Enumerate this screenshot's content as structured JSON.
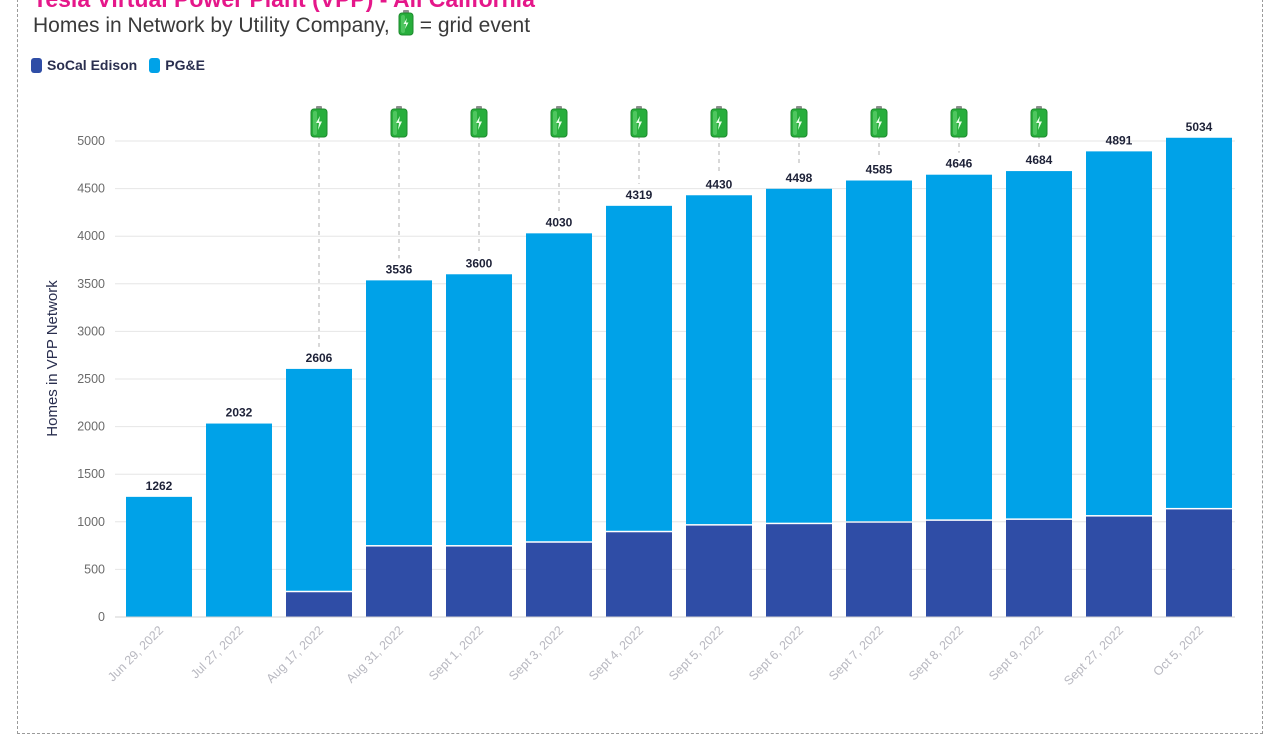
{
  "header": {
    "title": "Tesla Virtual Power Plant (VPP) - All California",
    "subtitle_before": "Homes in Network by Utility Company,",
    "subtitle_after": "= grid event",
    "battery_icon": "battery-grid-event-icon"
  },
  "colors": {
    "socal": "#2f4da6",
    "pge": "#00a2e8",
    "title": "#e5178a",
    "battery": "#27ae3c"
  },
  "chart_data": {
    "type": "bar",
    "stacked": true,
    "title": "Tesla Virtual Power Plant (VPP) - All California",
    "subtitle": "Homes in Network by Utility Company, = grid event",
    "xlabel": "",
    "ylabel": "Homes in VPP Network",
    "ylim": [
      0,
      5200
    ],
    "yticks": [
      0,
      500,
      1000,
      1500,
      2000,
      2500,
      3000,
      3500,
      4000,
      4500,
      5000
    ],
    "grid": true,
    "legend_position": "top-left",
    "categories": [
      "Jun 29, 2022",
      "Jul 27, 2022",
      "Aug 17, 2022",
      "Aug 31, 2022",
      "Sept 1, 2022",
      "Sept 3, 2022",
      "Sept 4, 2022",
      "Sept 5, 2022",
      "Sept 6, 2022",
      "Sept 7, 2022",
      "Sept 8, 2022",
      "Sept 9, 2022",
      "Sept 27, 2022",
      "Oct 5, 2022"
    ],
    "series": [
      {
        "name": "SoCal Edison",
        "values": [
          0,
          0,
          260,
          740,
          740,
          780,
          890,
          960,
          975,
          990,
          1010,
          1020,
          1055,
          1130
        ]
      },
      {
        "name": "PG&E",
        "values": [
          1262,
          2032,
          2346,
          2796,
          2860,
          3250,
          3429,
          3470,
          3523,
          3595,
          3636,
          3664,
          3836,
          3904
        ]
      }
    ],
    "totals": [
      1262,
      2032,
      2606,
      3536,
      3600,
      4030,
      4319,
      4430,
      4498,
      4585,
      4646,
      4684,
      4891,
      5034
    ],
    "grid_events": [
      false,
      false,
      true,
      true,
      true,
      true,
      true,
      true,
      true,
      true,
      true,
      true,
      false,
      false
    ]
  }
}
